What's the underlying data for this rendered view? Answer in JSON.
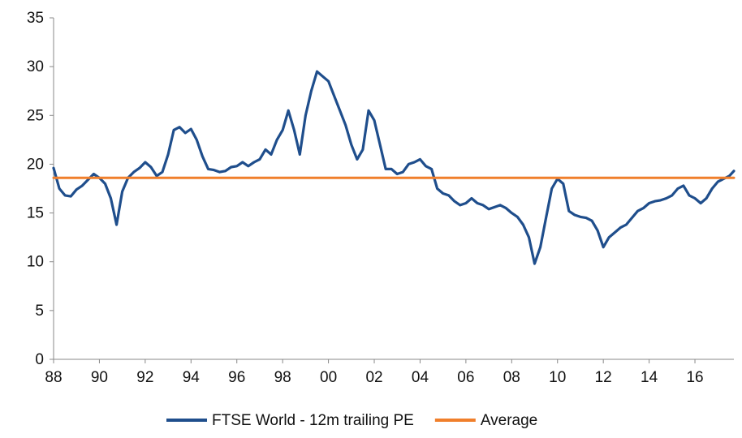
{
  "chart_data": {
    "type": "line",
    "title": "",
    "xlabel": "",
    "ylabel": "",
    "xlim": [
      1988,
      2017.7
    ],
    "ylim": [
      0,
      35
    ],
    "yticks": [
      0,
      5,
      10,
      15,
      20,
      25,
      30,
      35
    ],
    "xticks": [
      {
        "value": 1988,
        "label": "88"
      },
      {
        "value": 1990,
        "label": "90"
      },
      {
        "value": 1992,
        "label": "92"
      },
      {
        "value": 1994,
        "label": "94"
      },
      {
        "value": 1996,
        "label": "96"
      },
      {
        "value": 1998,
        "label": "98"
      },
      {
        "value": 2000,
        "label": "00"
      },
      {
        "value": 2002,
        "label": "02"
      },
      {
        "value": 2004,
        "label": "04"
      },
      {
        "value": 2006,
        "label": "06"
      },
      {
        "value": 2008,
        "label": "08"
      },
      {
        "value": 2010,
        "label": "10"
      },
      {
        "value": 2012,
        "label": "12"
      },
      {
        "value": 2014,
        "label": "14"
      },
      {
        "value": 2016,
        "label": "16"
      }
    ],
    "grid": false,
    "legend": "bottom",
    "series": [
      {
        "name": "FTSE World - 12m trailing PE",
        "color": "#1f4e8c",
        "x": [
          1988.0,
          1988.25,
          1988.5,
          1988.75,
          1989.0,
          1989.25,
          1989.5,
          1989.75,
          1990.0,
          1990.25,
          1990.5,
          1990.75,
          1991.0,
          1991.25,
          1991.5,
          1991.75,
          1992.0,
          1992.25,
          1992.5,
          1992.75,
          1993.0,
          1993.25,
          1993.5,
          1993.75,
          1994.0,
          1994.25,
          1994.5,
          1994.75,
          1995.0,
          1995.25,
          1995.5,
          1995.75,
          1996.0,
          1996.25,
          1996.5,
          1996.75,
          1997.0,
          1997.25,
          1997.5,
          1997.75,
          1998.0,
          1998.25,
          1998.5,
          1998.75,
          1999.0,
          1999.25,
          1999.5,
          1999.75,
          2000.0,
          2000.25,
          2000.5,
          2000.75,
          2001.0,
          2001.25,
          2001.5,
          2001.75,
          2002.0,
          2002.25,
          2002.5,
          2002.75,
          2003.0,
          2003.25,
          2003.5,
          2003.75,
          2004.0,
          2004.25,
          2004.5,
          2004.75,
          2005.0,
          2005.25,
          2005.5,
          2005.75,
          2006.0,
          2006.25,
          2006.5,
          2006.75,
          2007.0,
          2007.25,
          2007.5,
          2007.75,
          2008.0,
          2008.25,
          2008.5,
          2008.75,
          2009.0,
          2009.25,
          2009.5,
          2009.75,
          2010.0,
          2010.25,
          2010.5,
          2010.75,
          2011.0,
          2011.25,
          2011.5,
          2011.75,
          2012.0,
          2012.25,
          2012.5,
          2012.75,
          2013.0,
          2013.25,
          2013.5,
          2013.75,
          2014.0,
          2014.25,
          2014.5,
          2014.75,
          2015.0,
          2015.25,
          2015.5,
          2015.75,
          2016.0,
          2016.25,
          2016.5,
          2016.75,
          2017.0,
          2017.25,
          2017.5,
          2017.7
        ],
        "values": [
          19.6,
          17.5,
          16.8,
          16.7,
          17.4,
          17.8,
          18.4,
          19.0,
          18.6,
          18.0,
          16.5,
          13.8,
          17.2,
          18.6,
          19.2,
          19.6,
          20.2,
          19.7,
          18.8,
          19.2,
          21.0,
          23.5,
          23.8,
          23.2,
          23.6,
          22.5,
          20.8,
          19.5,
          19.4,
          19.2,
          19.3,
          19.7,
          19.8,
          20.2,
          19.8,
          20.2,
          20.5,
          21.5,
          21.0,
          22.5,
          23.5,
          25.5,
          23.5,
          21.0,
          25.0,
          27.5,
          29.5,
          29.0,
          28.5,
          27.0,
          25.5,
          24.0,
          22.0,
          20.5,
          21.5,
          25.5,
          24.5,
          22.0,
          19.5,
          19.5,
          19.0,
          19.2,
          20.0,
          20.2,
          20.5,
          19.8,
          19.5,
          17.5,
          17.0,
          16.8,
          16.2,
          15.8,
          16.0,
          16.5,
          16.0,
          15.8,
          15.4,
          15.6,
          15.8,
          15.5,
          15.0,
          14.6,
          13.8,
          12.5,
          9.8,
          11.5,
          14.5,
          17.5,
          18.5,
          18.0,
          15.2,
          14.8,
          14.6,
          14.5,
          14.2,
          13.2,
          11.5,
          12.5,
          13.0,
          13.5,
          13.8,
          14.5,
          15.2,
          15.5,
          16.0,
          16.2,
          16.3,
          16.5,
          16.8,
          17.5,
          17.8,
          16.8,
          16.5,
          16.0,
          16.5,
          17.5,
          18.2,
          18.5,
          18.8,
          19.3
        ]
      },
      {
        "name": "Average",
        "color": "#f07f2b",
        "x": [
          1988.0,
          2017.7
        ],
        "values": [
          18.6,
          18.6
        ]
      }
    ]
  }
}
